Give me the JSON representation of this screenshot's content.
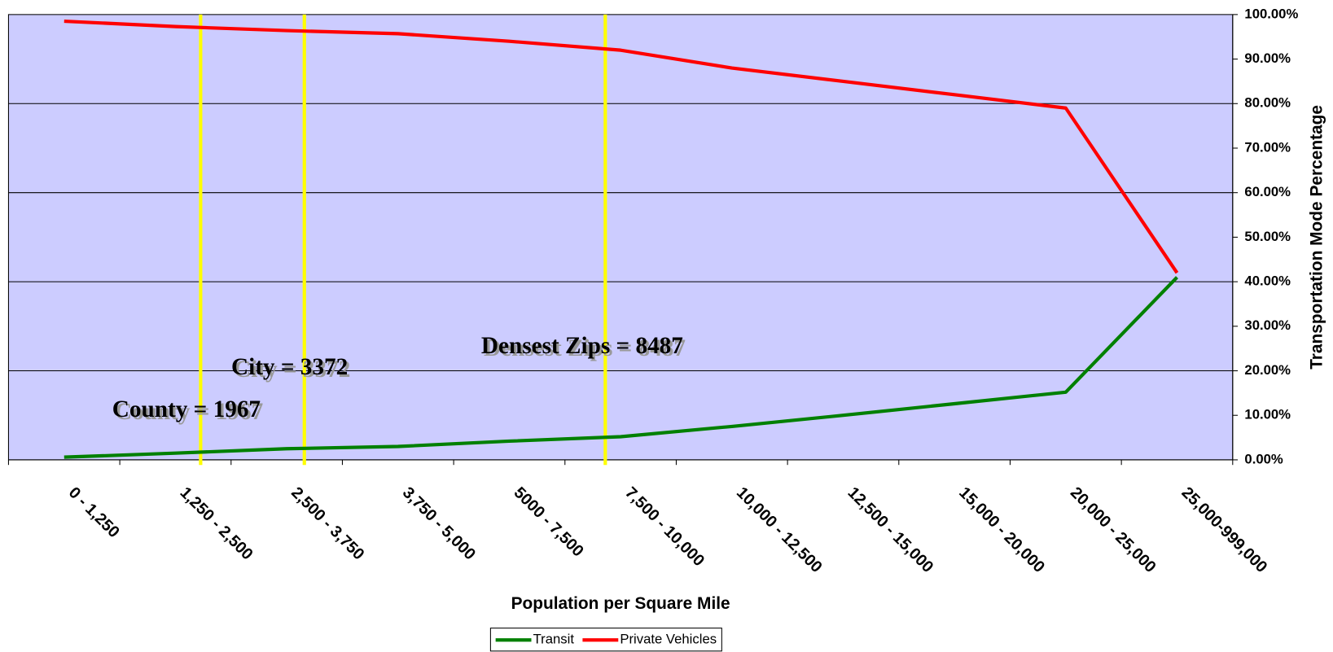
{
  "chart_data": {
    "type": "line",
    "x_label": "Population per Square Mile",
    "y_label": "Transportation Mode Percentage",
    "categories": [
      "0 - 1,250",
      "1,250 - 2,500",
      "2,500 - 3,750",
      "3,750 - 5,000",
      "5000 - 7,500",
      "7,500 - 10,000",
      "10,000 - 12,500",
      "12,500 - 15,000",
      "15,000 - 20,000",
      "20,000 - 25,000",
      "25,000-999,000"
    ],
    "series": [
      {
        "name": "Transit",
        "color": "#008000",
        "values": [
          0.6,
          1.5,
          2.5,
          3,
          4.2,
          5.2,
          7.5,
          10,
          12.6,
          15.2,
          41
        ]
      },
      {
        "name": "Private Vehicles",
        "color": "#ff0000",
        "values": [
          98.5,
          97.3,
          96.4,
          95.7,
          94,
          92,
          88,
          85,
          82,
          79,
          42
        ]
      }
    ],
    "ylim": [
      0,
      100
    ],
    "yticks": [
      {
        "value": 0,
        "label": "0.00%"
      },
      {
        "value": 10,
        "label": "10.00%"
      },
      {
        "value": 20,
        "label": "20.00%"
      },
      {
        "value": 30,
        "label": "30.00%"
      },
      {
        "value": 40,
        "label": "40.00%"
      },
      {
        "value": 50,
        "label": "50.00%"
      },
      {
        "value": 60,
        "label": "60.00%"
      },
      {
        "value": 70,
        "label": "70.00%"
      },
      {
        "value": 80,
        "label": "80.00%"
      },
      {
        "value": 90,
        "label": "90.00%"
      },
      {
        "value": 100,
        "label": "100.00%"
      }
    ],
    "annotations": [
      "County = 1967",
      "City = 3372",
      "Densest Zips = 8487"
    ],
    "legend": "bottom"
  }
}
